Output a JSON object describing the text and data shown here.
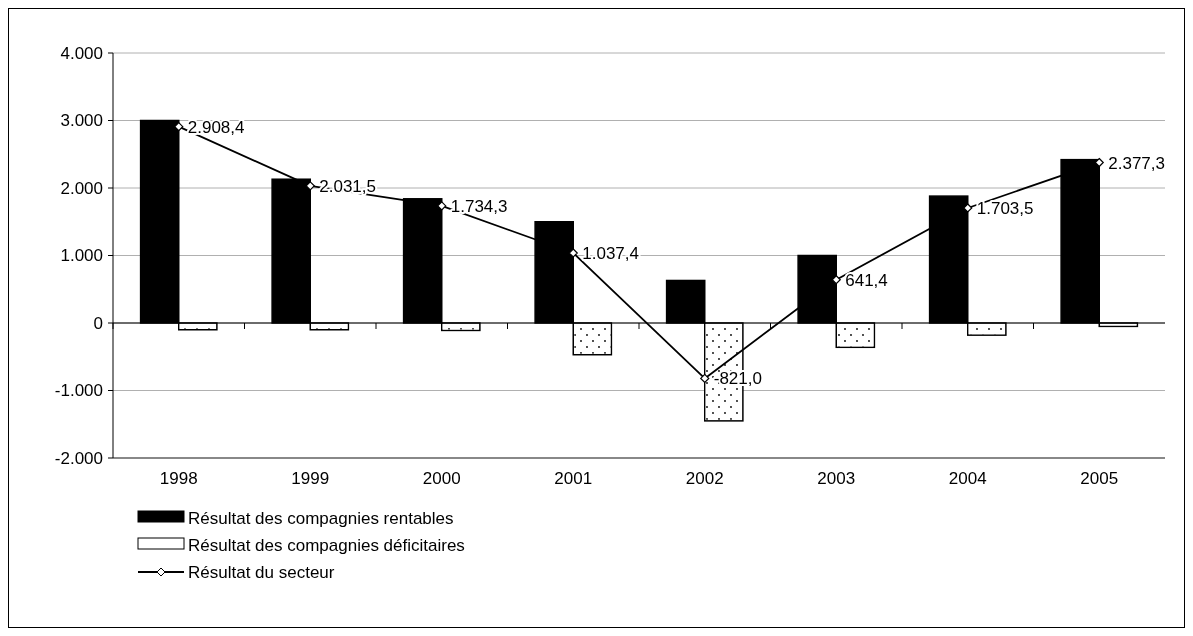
{
  "chart_data": {
    "type": "bar",
    "categories": [
      "1998",
      "1999",
      "2000",
      "2001",
      "2002",
      "2003",
      "2004",
      "2005"
    ],
    "series": [
      {
        "name": "Résultat des compagnies rentables",
        "color": "#000000",
        "values": [
          3000,
          2130,
          1840,
          1500,
          630,
          1000,
          1880,
          2420
        ]
      },
      {
        "name": "Résultat des compagnies déficitaires",
        "color": "#ffffff",
        "values": [
          -100,
          -100,
          -110,
          -470,
          -1450,
          -360,
          -180,
          -50
        ]
      },
      {
        "name": "Résultat du secteur",
        "type": "line",
        "color": "#000000",
        "marker": "diamond",
        "values": [
          2908.4,
          2031.5,
          1734.3,
          1037.4,
          -821.0,
          641.4,
          1703.5,
          2377.3
        ],
        "value_labels": [
          "2.908,4",
          "2.031,5",
          "1.734,3",
          "1.037,4",
          "-821,0",
          "641,4",
          "1.703,5",
          "2.377,3"
        ]
      }
    ],
    "ylim": [
      -2000,
      4000
    ],
    "yticks": [
      {
        "value": -2000,
        "label": "-2.000"
      },
      {
        "value": -1000,
        "label": "-1.000"
      },
      0,
      {
        "value": 1000,
        "label": "1.000"
      },
      {
        "value": 2000,
        "label": "2.000"
      },
      {
        "value": 3000,
        "label": "3.000"
      },
      {
        "value": 4000,
        "label": "4.000"
      }
    ],
    "grid": "y",
    "legend": "bottom left"
  }
}
